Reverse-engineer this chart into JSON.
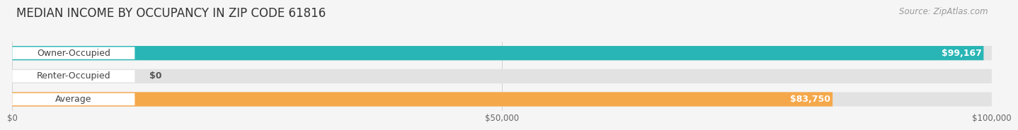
{
  "title": "MEDIAN INCOME BY OCCUPANCY IN ZIP CODE 61816",
  "source": "Source: ZipAtlas.com",
  "categories": [
    "Owner-Occupied",
    "Renter-Occupied",
    "Average"
  ],
  "values": [
    99167,
    0,
    83750
  ],
  "bar_colors": [
    "#29b5b5",
    "#b59dcc",
    "#f5a84a"
  ],
  "value_labels": [
    "$99,167",
    "$0",
    "$83,750"
  ],
  "xlim": [
    0,
    100000
  ],
  "xticks": [
    0,
    50000,
    100000
  ],
  "xticklabels": [
    "$0",
    "$50,000",
    "$100,000"
  ],
  "background_color": "#f5f5f5",
  "bar_bg_color": "#e2e2e2",
  "title_fontsize": 12,
  "source_fontsize": 8.5,
  "label_fontsize": 9,
  "tick_fontsize": 8.5,
  "value_fontsize": 9
}
